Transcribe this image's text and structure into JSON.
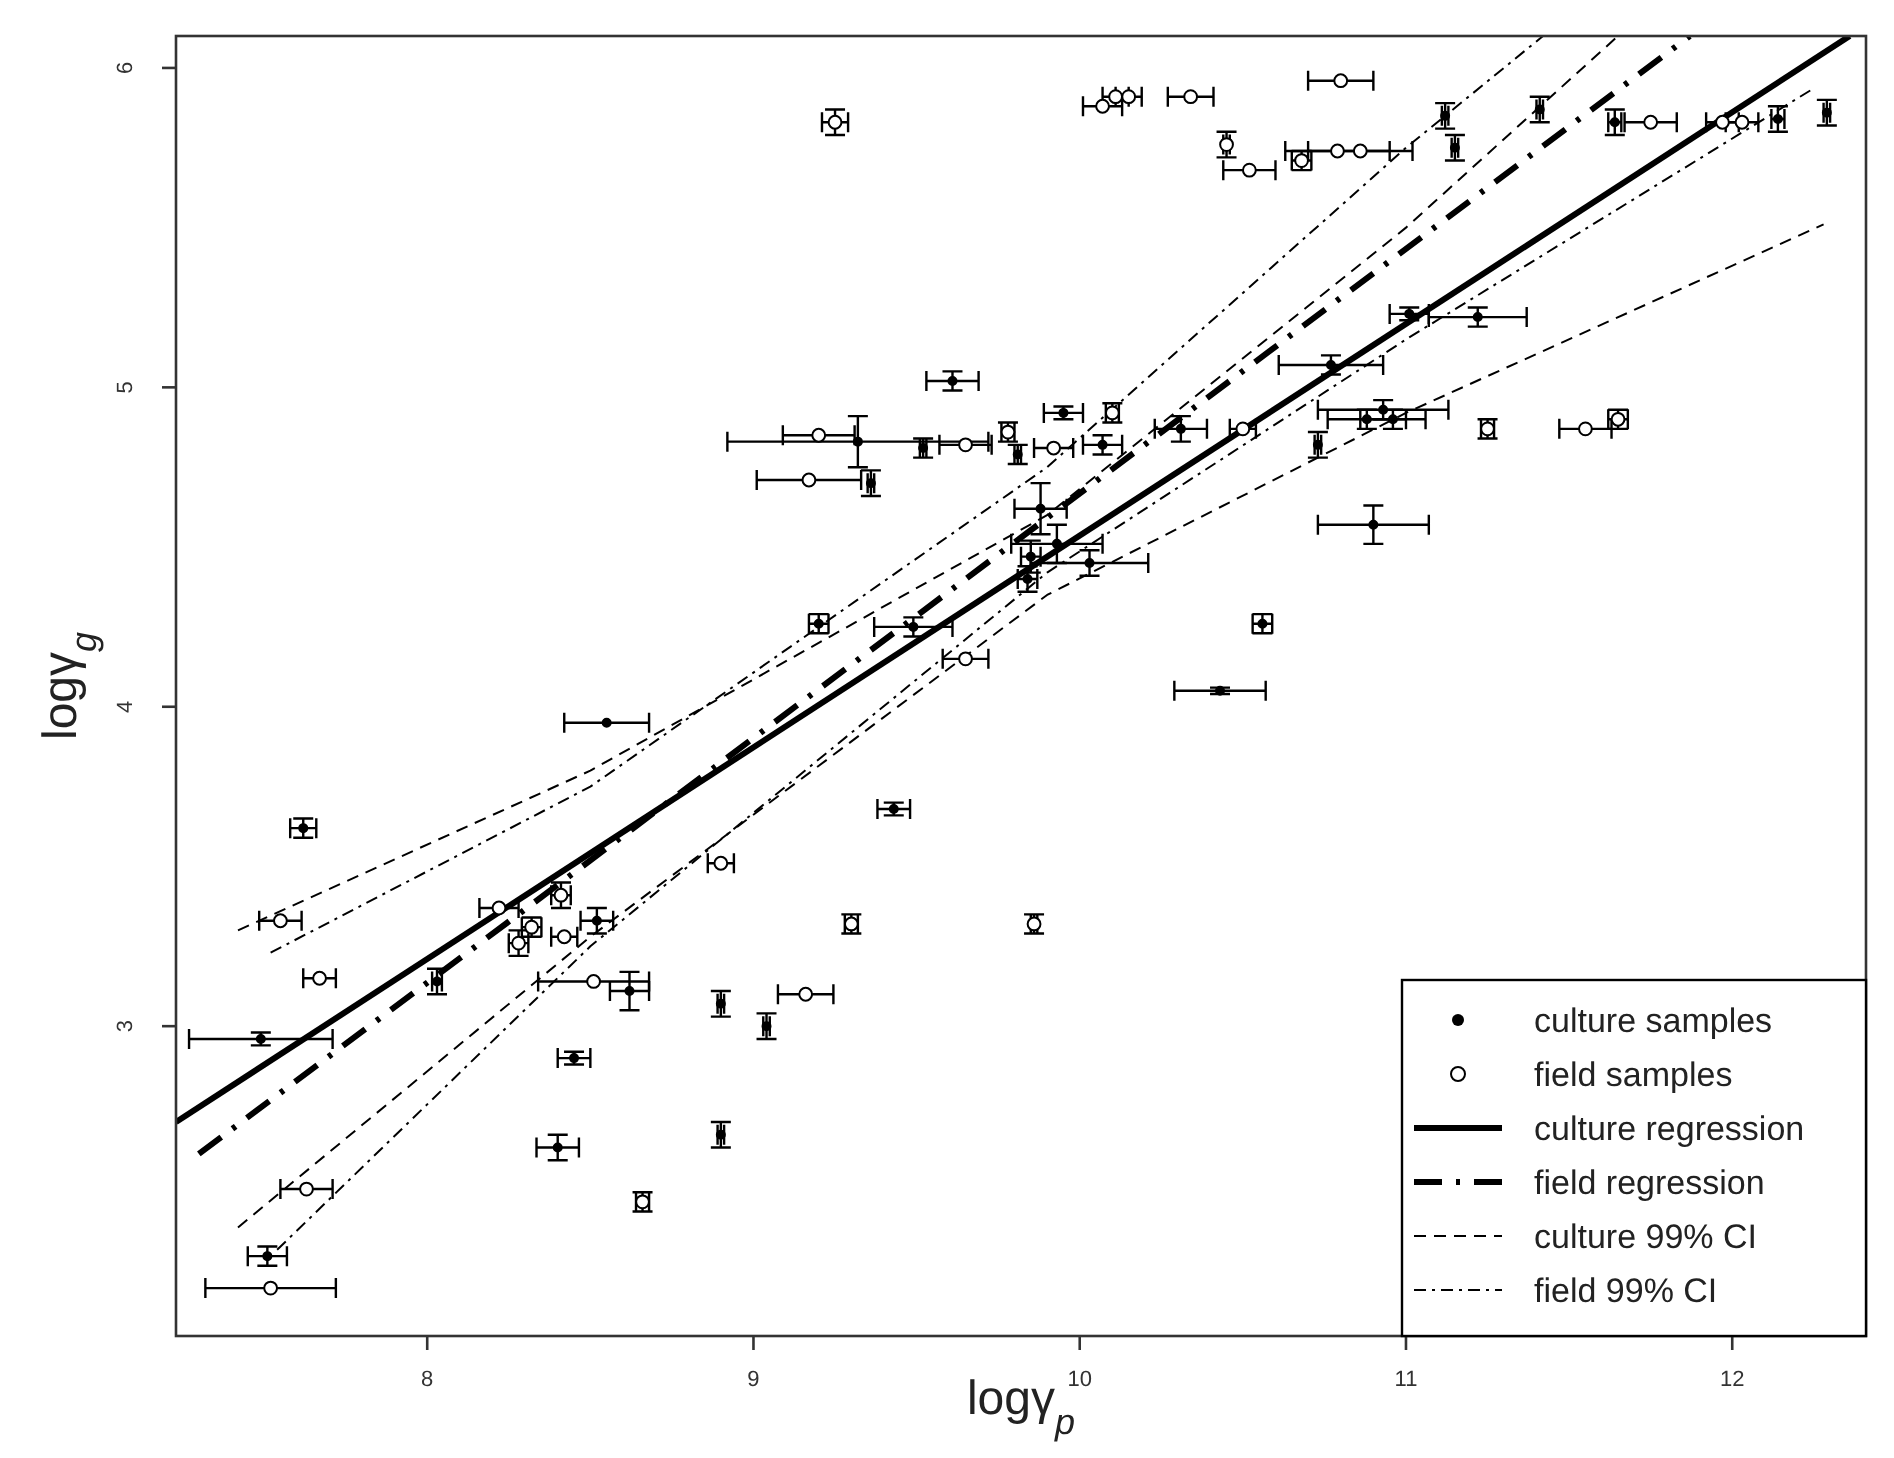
{
  "chart_data": {
    "type": "scatter",
    "xlabel": "logγ$_{p}$",
    "ylabel": "logγ$_{g}$",
    "xlim": [
      7.23,
      12.41
    ],
    "ylim": [
      2.03,
      6.1
    ],
    "xticks": [
      8,
      9,
      10,
      11,
      12
    ],
    "yticks": [
      3,
      4,
      5,
      6
    ],
    "legend": "bottom right",
    "grid": false,
    "series": [
      {
        "name": "culture samples",
        "marker": "circle",
        "color": "#000000",
        "x": [
          8.55,
          7.62,
          7.49,
          8.4,
          8.45,
          8.52,
          8.03,
          7.51,
          8.62,
          9.43,
          8.9,
          9.04,
          8.9,
          10.43,
          9.61,
          9.32,
          9.36,
          9.52,
          9.81,
          9.95,
          10.07,
          10.31,
          9.88,
          9.93,
          9.85,
          10.03,
          9.84,
          9.2,
          9.49,
          10.56,
          11.12,
          11.41,
          11.64,
          12.14,
          12.29,
          11.15,
          11.01,
          11.22,
          10.77,
          10.93,
          10.88,
          10.96,
          10.9,
          10.73
        ],
        "values": [
          3.95,
          3.62,
          2.96,
          2.62,
          2.9,
          3.33,
          3.14,
          2.28,
          3.11,
          3.68,
          3.07,
          3.0,
          2.66,
          4.05,
          5.02,
          4.83,
          4.7,
          4.81,
          4.79,
          4.92,
          4.82,
          4.87,
          4.62,
          4.51,
          4.47,
          4.45,
          4.4,
          4.26,
          4.25,
          4.26,
          5.85,
          5.87,
          5.83,
          5.84,
          5.86,
          5.75,
          5.23,
          5.22,
          5.07,
          4.93,
          4.9,
          4.9,
          4.57,
          4.82
        ],
        "xerrors": [
          0.13,
          0.04,
          0.22,
          0.065,
          0.05,
          0.05,
          0.015,
          0.06,
          0.06,
          0.05,
          0.01,
          0.01,
          0.01,
          0.14,
          0.08,
          0.4,
          0.01,
          0.01,
          0.01,
          0.06,
          0.06,
          0.08,
          0.08,
          0.14,
          0.03,
          0.18,
          0.03,
          0.03,
          0.12,
          0.03,
          0.01,
          0.01,
          0.02,
          0.02,
          0.01,
          0.01,
          0.06,
          0.15,
          0.16,
          0.2,
          0.12,
          0.1,
          0.17,
          0.01
        ],
        "errors": [
          null,
          0.03,
          0.02,
          0.04,
          0.02,
          0.04,
          0.04,
          0.03,
          0.06,
          0.02,
          0.04,
          0.04,
          0.04,
          0.01,
          0.03,
          0.08,
          0.04,
          0.03,
          0.03,
          0.02,
          0.03,
          0.04,
          0.08,
          0.06,
          0.05,
          0.04,
          0.04,
          0.03,
          0.03,
          0.03,
          0.04,
          0.04,
          0.04,
          0.04,
          0.04,
          0.04,
          0.02,
          0.03,
          0.03,
          0.03,
          0.03,
          0.03,
          0.06,
          0.04
        ]
      },
      {
        "name": "field samples",
        "marker": "circle",
        "color": "#000000",
        "x": [
          7.55,
          7.67,
          7.63,
          7.52,
          8.22,
          8.41,
          8.28,
          8.32,
          8.42,
          8.51,
          8.66,
          8.9,
          9.3,
          9.86,
          9.16,
          9.25,
          10.07,
          10.11,
          10.15,
          10.34,
          10.45,
          10.52,
          9.2,
          9.65,
          9.17,
          9.78,
          10.1,
          9.92,
          10.5,
          9.65,
          10.8,
          11.75,
          11.97,
          12.03,
          10.68,
          10.79,
          10.86,
          11.25,
          11.55,
          11.65
        ],
        "values": [
          3.33,
          3.15,
          2.49,
          2.18,
          3.37,
          3.41,
          3.26,
          3.31,
          3.28,
          3.14,
          2.45,
          3.51,
          3.32,
          3.32,
          3.1,
          5.83,
          5.88,
          5.91,
          5.91,
          5.91,
          5.76,
          5.68,
          4.85,
          4.82,
          4.71,
          4.86,
          4.92,
          4.81,
          4.87,
          4.15,
          5.96,
          5.83,
          5.83,
          5.83,
          5.71,
          5.74,
          5.74,
          4.87,
          4.87,
          4.9
        ],
        "xerrors": [
          0.065,
          0.05,
          0.08,
          0.2,
          0.06,
          0.03,
          0.03,
          0.03,
          0.04,
          0.17,
          0.02,
          0.04,
          0.02,
          0.01,
          0.085,
          0.04,
          0.06,
          0.04,
          0.04,
          0.07,
          0.01,
          0.08,
          0.11,
          0.08,
          0.16,
          0.02,
          0.02,
          0.06,
          0.04,
          0.07,
          0.1,
          0.08,
          0.05,
          0.05,
          0.03,
          0.16,
          0.16,
          0.02,
          0.08,
          0.03
        ],
        "errors": [
          null,
          null,
          null,
          null,
          null,
          0.04,
          0.04,
          0.03,
          null,
          null,
          0.03,
          null,
          0.03,
          0.03,
          null,
          0.04,
          null,
          null,
          null,
          null,
          0.04,
          null,
          null,
          null,
          null,
          0.03,
          0.03,
          null,
          null,
          null,
          null,
          null,
          null,
          null,
          0.03,
          null,
          null,
          0.03,
          null,
          0.03
        ]
      },
      {
        "name": "culture regression",
        "type": "line",
        "line_style": "solid",
        "color": "#000000",
        "x": [
          7.23,
          12.36
        ],
        "values": [
          2.7,
          6.1
        ]
      },
      {
        "name": "field regression",
        "type": "line",
        "line_style": "dashdot",
        "color": "#000000",
        "x": [
          7.3,
          11.87
        ],
        "values": [
          2.6,
          6.1
        ]
      },
      {
        "name": "culture 99% CI",
        "type": "line",
        "line_style": "dashed",
        "color": "#000000",
        "x": [
          7.42,
          8.5,
          9.9,
          11,
          11.65
        ],
        "values": [
          3.3,
          3.8,
          4.6,
          5.5,
          6.1
        ]
      },
      {
        "type": "line",
        "line_style": "dashed",
        "color": "#000000",
        "x": [
          7.42,
          8.5,
          9.9,
          11,
          12.28
        ],
        "values": [
          2.37,
          3.28,
          4.35,
          4.92,
          5.51
        ]
      },
      {
        "name": "field 99% CI",
        "type": "line",
        "line_style": "dashdot",
        "color": "#000000",
        "x": [
          7.52,
          8.5,
          9.9,
          11,
          11.42
        ],
        "values": [
          3.23,
          3.75,
          4.75,
          5.75,
          6.1
        ]
      },
      {
        "type": "line",
        "line_style": "dashdot",
        "color": "#000000",
        "x": [
          7.54,
          8.5,
          9.9,
          11,
          12.24
        ],
        "values": [
          2.3,
          3.25,
          4.42,
          5.15,
          5.93
        ]
      }
    ]
  }
}
